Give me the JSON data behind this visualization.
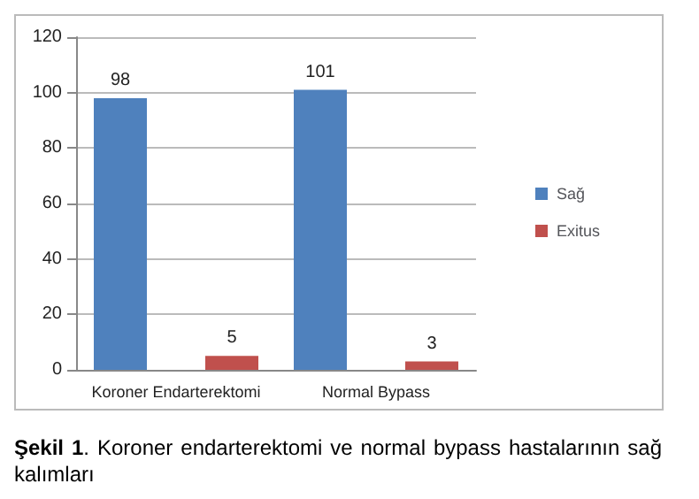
{
  "chart_data": {
    "type": "bar",
    "categories": [
      "Koroner Endarterektomi",
      "Normal Bypass"
    ],
    "series": [
      {
        "name": "Sağ",
        "color": "#4f81bd",
        "values": [
          98,
          101
        ]
      },
      {
        "name": "Exitus",
        "color": "#c0504d",
        "values": [
          5,
          3
        ]
      }
    ],
    "ylim": [
      0,
      120
    ],
    "yticks": [
      0,
      20,
      40,
      60,
      80,
      100,
      120
    ],
    "grid": "y",
    "legend": "right",
    "data_labels": true,
    "annotations": [
      "Şekil 1. Koroner endarterektomi ve normal bypass hastalarının sağ kalımları"
    ]
  }
}
